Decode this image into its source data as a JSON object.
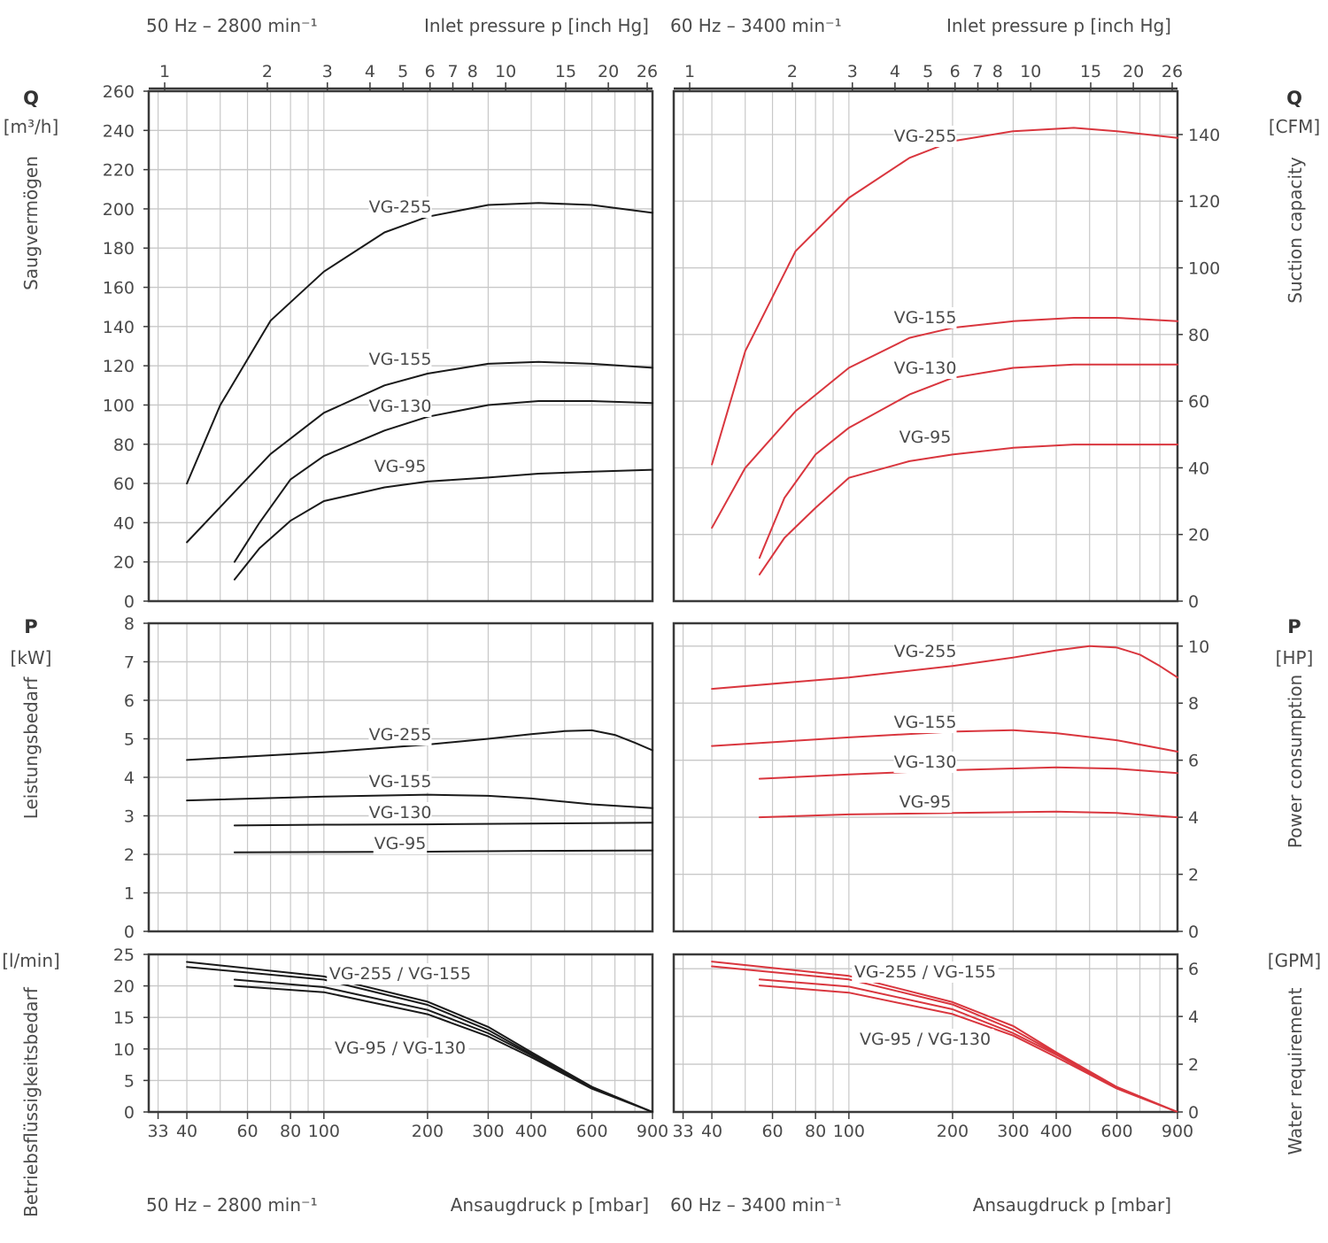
{
  "header": {
    "left_freq": "50 Hz – 2800 min⁻¹",
    "left_inlet": "Inlet pressure p [inch Hg]",
    "right_freq": "60 Hz – 3400 min⁻¹",
    "right_inlet": "Inlet pressure p [inch Hg]"
  },
  "footer": {
    "left_freq": "50 Hz – 2800 min⁻¹",
    "left_ansaug": "Ansaugdruck p [mbar]",
    "right_freq": "60 Hz – 3400 min⁻¹",
    "right_ansaug": "Ansaugdruck p [mbar]"
  },
  "left_axes": {
    "q_symbol": "Q",
    "q_unit": "[m³/h]",
    "q_name": "Saugvermögen",
    "p_symbol": "P",
    "p_unit": "[kW]",
    "p_name": "Leistungsbedarf",
    "w_unit": "[l/min]",
    "w_name": "Betriebsflüssigkeitsbedarf"
  },
  "right_axes": {
    "q_symbol": "Q",
    "q_unit": "[CFM]",
    "q_name": "Suction capacity",
    "p_symbol": "P",
    "p_unit": "[HP]",
    "p_name": "Power consumption",
    "w_unit": "[GPM]",
    "w_name": "Water requirement"
  },
  "colors": {
    "hz50": "#1a1a1a",
    "hz60": "#d9363e",
    "grid": "#c8c8c8",
    "frame": "#3a3a3a"
  },
  "chart_data": [
    {
      "type": "line",
      "id": "suction-50hz",
      "x_scale": "log",
      "x_unit": "mbar",
      "xlim": [
        31,
        900
      ],
      "ylim": [
        0,
        260
      ],
      "x_ticks": [
        33,
        40,
        60,
        80,
        100,
        200,
        300,
        400,
        600,
        900
      ],
      "y_ticks": [
        0,
        20,
        40,
        60,
        80,
        100,
        120,
        140,
        160,
        180,
        200,
        220,
        240,
        260
      ],
      "top_ticks": [
        1,
        2,
        3,
        4,
        5,
        6,
        7,
        8,
        10,
        15,
        20,
        26
      ],
      "series": [
        {
          "name": "VG-255",
          "x": [
            40,
            50,
            70,
            100,
            150,
            200,
            300,
            420,
            600,
            900
          ],
          "y": [
            60,
            100,
            143,
            168,
            188,
            196,
            202,
            203,
            202,
            198
          ]
        },
        {
          "name": "VG-155",
          "x": [
            40,
            50,
            70,
            100,
            150,
            200,
            300,
            420,
            600,
            900
          ],
          "y": [
            30,
            48,
            75,
            96,
            110,
            116,
            121,
            122,
            121,
            119
          ]
        },
        {
          "name": "VG-130",
          "x": [
            55,
            65,
            80,
            100,
            150,
            200,
            300,
            420,
            600,
            900
          ],
          "y": [
            20,
            40,
            62,
            74,
            87,
            94,
            100,
            102,
            102,
            101
          ]
        },
        {
          "name": "VG-95",
          "x": [
            55,
            65,
            80,
            100,
            150,
            200,
            300,
            420,
            600,
            900
          ],
          "y": [
            11,
            27,
            41,
            51,
            58,
            61,
            63,
            65,
            66,
            67
          ]
        }
      ]
    },
    {
      "type": "line",
      "id": "power-50hz",
      "x_scale": "log",
      "x_unit": "mbar",
      "xlim": [
        31,
        900
      ],
      "ylim": [
        0,
        8
      ],
      "y_ticks": [
        0,
        1,
        2,
        3,
        4,
        5,
        6,
        7,
        8
      ],
      "series": [
        {
          "name": "VG-255",
          "x": [
            40,
            100,
            200,
            300,
            400,
            500,
            600,
            700,
            800,
            900
          ],
          "y": [
            4.45,
            4.65,
            4.85,
            5.0,
            5.12,
            5.2,
            5.22,
            5.1,
            4.9,
            4.7
          ]
        },
        {
          "name": "VG-155",
          "x": [
            40,
            100,
            200,
            300,
            400,
            600,
            900
          ],
          "y": [
            3.4,
            3.5,
            3.55,
            3.52,
            3.45,
            3.3,
            3.2
          ]
        },
        {
          "name": "VG-130",
          "x": [
            55,
            100,
            200,
            400,
            900
          ],
          "y": [
            2.75,
            2.77,
            2.78,
            2.8,
            2.82
          ]
        },
        {
          "name": "VG-95",
          "x": [
            55,
            100,
            200,
            400,
            900
          ],
          "y": [
            2.05,
            2.06,
            2.07,
            2.09,
            2.1
          ]
        }
      ]
    },
    {
      "type": "line",
      "id": "water-50hz",
      "x_scale": "log",
      "x_unit": "mbar",
      "xlim": [
        31,
        900
      ],
      "ylim": [
        0,
        25
      ],
      "y_ticks": [
        0,
        5,
        10,
        15,
        20,
        25
      ],
      "labels": [
        "VG-255 / VG-155",
        "VG-95 / VG-130"
      ],
      "series": [
        {
          "x": [
            40,
            100,
            200,
            300,
            400,
            600,
            900
          ],
          "y": [
            23.8,
            21.5,
            17.5,
            13.5,
            9.5,
            4.0,
            0
          ]
        },
        {
          "x": [
            40,
            100,
            200,
            300,
            400,
            600,
            900
          ],
          "y": [
            23.0,
            21.0,
            17.0,
            13.0,
            9.2,
            3.9,
            0
          ]
        },
        {
          "x": [
            55,
            100,
            200,
            300,
            400,
            600,
            900
          ],
          "y": [
            21.0,
            19.8,
            16.2,
            12.5,
            9.0,
            3.8,
            0
          ]
        },
        {
          "x": [
            55,
            100,
            200,
            300,
            400,
            600,
            900
          ],
          "y": [
            20.0,
            19.0,
            15.5,
            12.0,
            8.7,
            3.7,
            0
          ]
        }
      ]
    },
    {
      "type": "line",
      "id": "suction-60hz",
      "x_scale": "log",
      "x_unit": "mbar",
      "xlim": [
        31,
        900
      ],
      "ylim": [
        0,
        153
      ],
      "y_unit": "CFM",
      "y_ticks": [
        0,
        20,
        40,
        60,
        80,
        100,
        120,
        140
      ],
      "top_ticks": [
        1,
        2,
        3,
        4,
        5,
        6,
        7,
        8,
        10,
        15,
        20,
        26
      ],
      "series": [
        {
          "name": "VG-255",
          "x": [
            40,
            50,
            70,
            100,
            150,
            200,
            300,
            450,
            600,
            900
          ],
          "y": [
            41,
            75,
            105,
            121,
            133,
            138,
            141,
            142,
            141,
            139
          ]
        },
        {
          "name": "VG-155",
          "x": [
            40,
            50,
            70,
            100,
            150,
            200,
            300,
            450,
            600,
            900
          ],
          "y": [
            22,
            40,
            57,
            70,
            79,
            82,
            84,
            85,
            85,
            84
          ]
        },
        {
          "name": "VG-130",
          "x": [
            55,
            65,
            80,
            100,
            150,
            200,
            300,
            450,
            600,
            900
          ],
          "y": [
            13,
            31,
            44,
            52,
            62,
            67,
            70,
            71,
            71,
            71
          ]
        },
        {
          "name": "VG-95",
          "x": [
            55,
            65,
            80,
            100,
            150,
            200,
            300,
            450,
            600,
            900
          ],
          "y": [
            8,
            19,
            28,
            37,
            42,
            44,
            46,
            47,
            47,
            47
          ]
        }
      ]
    },
    {
      "type": "line",
      "id": "power-60hz",
      "x_scale": "log",
      "x_unit": "mbar",
      "xlim": [
        31,
        900
      ],
      "ylim": [
        0,
        10.8
      ],
      "y_unit": "HP",
      "y_ticks": [
        0,
        2,
        4,
        6,
        8,
        10
      ],
      "series": [
        {
          "name": "VG-255",
          "x": [
            40,
            100,
            200,
            300,
            400,
            500,
            600,
            700,
            800,
            900
          ],
          "y": [
            8.5,
            8.9,
            9.3,
            9.6,
            9.85,
            10.0,
            9.95,
            9.7,
            9.3,
            8.9
          ]
        },
        {
          "name": "VG-155",
          "x": [
            40,
            100,
            200,
            300,
            400,
            600,
            900
          ],
          "y": [
            6.5,
            6.8,
            7.0,
            7.05,
            6.95,
            6.7,
            6.3
          ]
        },
        {
          "name": "VG-130",
          "x": [
            55,
            100,
            200,
            400,
            600,
            900
          ],
          "y": [
            5.35,
            5.5,
            5.65,
            5.75,
            5.7,
            5.55
          ]
        },
        {
          "name": "VG-95",
          "x": [
            55,
            100,
            200,
            400,
            600,
            900
          ],
          "y": [
            4.0,
            4.1,
            4.15,
            4.2,
            4.15,
            4.0
          ]
        }
      ]
    },
    {
      "type": "line",
      "id": "water-60hz",
      "x_scale": "log",
      "x_unit": "mbar",
      "xlim": [
        31,
        900
      ],
      "ylim": [
        0,
        6.6
      ],
      "y_unit": "GPM",
      "y_ticks": [
        0,
        2,
        4,
        6
      ],
      "labels": [
        "VG-255 / VG-155",
        "VG-95 / VG-130"
      ],
      "series": [
        {
          "x": [
            40,
            100,
            200,
            300,
            400,
            600,
            900
          ],
          "y": [
            6.3,
            5.7,
            4.6,
            3.6,
            2.5,
            1.05,
            0
          ]
        },
        {
          "x": [
            40,
            100,
            200,
            300,
            400,
            600,
            900
          ],
          "y": [
            6.1,
            5.55,
            4.5,
            3.45,
            2.45,
            1.0,
            0
          ]
        },
        {
          "x": [
            55,
            100,
            200,
            300,
            400,
            600,
            900
          ],
          "y": [
            5.55,
            5.25,
            4.3,
            3.3,
            2.4,
            1.0,
            0
          ]
        },
        {
          "x": [
            55,
            100,
            200,
            300,
            400,
            600,
            900
          ],
          "y": [
            5.3,
            5.0,
            4.1,
            3.2,
            2.3,
            0.98,
            0
          ]
        }
      ]
    }
  ]
}
